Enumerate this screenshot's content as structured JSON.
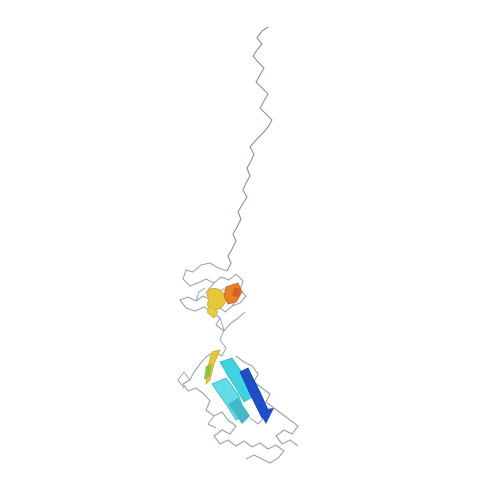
{
  "image": {
    "subject": "protein-ribbon-structure",
    "colors": {
      "background": "#ffffff",
      "coil": "#9aa3b2",
      "tail": "#8790a2",
      "helix_orange": "#e5822a",
      "strand_yellow": "#e6c63a",
      "strand_cyan": "#3fd2e0",
      "strand_blue": "#1e4fc9",
      "strand_teal": "#45b7c6"
    }
  }
}
